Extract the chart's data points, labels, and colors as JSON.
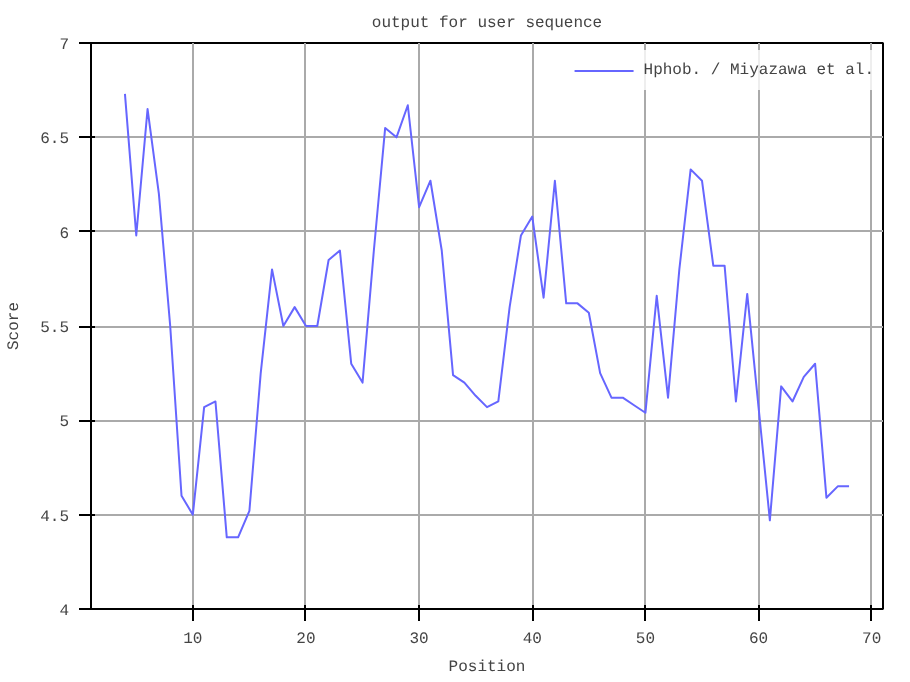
{
  "chart_data": {
    "type": "line",
    "title": "output for user sequence",
    "xlabel": "Position",
    "ylabel": "Score",
    "x": [
      4,
      5,
      6,
      7,
      8,
      9,
      10,
      11,
      12,
      13,
      14,
      15,
      16,
      17,
      18,
      19,
      20,
      21,
      22,
      23,
      24,
      25,
      26,
      27,
      28,
      29,
      30,
      31,
      32,
      33,
      34,
      35,
      36,
      37,
      38,
      39,
      40,
      41,
      42,
      43,
      44,
      45,
      46,
      47,
      48,
      49,
      50,
      51,
      52,
      53,
      54,
      55,
      56,
      57,
      58,
      59,
      60,
      61,
      62,
      63,
      64,
      65,
      66,
      67,
      68
    ],
    "series": [
      {
        "name": "Hphob. / Miyazawa et al.",
        "color": "#6666ff",
        "values": [
          6.73,
          5.98,
          6.65,
          6.2,
          5.5,
          4.6,
          4.5,
          5.07,
          5.1,
          4.38,
          4.38,
          4.52,
          5.25,
          5.8,
          5.5,
          5.6,
          5.5,
          5.5,
          5.85,
          5.9,
          5.3,
          5.2,
          5.9,
          6.55,
          6.5,
          6.67,
          6.13,
          6.27,
          5.9,
          5.24,
          5.2,
          5.13,
          5.07,
          5.1,
          5.6,
          5.98,
          6.08,
          5.65,
          6.27,
          5.62,
          5.62,
          5.57,
          5.25,
          5.12,
          5.12,
          5.08,
          5.04,
          5.66,
          5.12,
          5.8,
          6.33,
          6.27,
          5.82,
          5.82,
          5.1,
          5.67,
          5.07,
          4.47,
          5.18,
          5.1,
          5.23,
          5.3,
          4.59,
          4.65,
          4.65
        ]
      }
    ],
    "xlim": [
      1,
      71
    ],
    "xticks": [
      10,
      20,
      30,
      40,
      50,
      60,
      70
    ],
    "ylim": [
      4,
      7
    ],
    "yticks": [
      4,
      {
        "value": 4.5,
        "label": "4.5"
      },
      5,
      {
        "value": 5.5,
        "label": "5.5"
      },
      6,
      {
        "value": 6.5,
        "label": "6.5"
      },
      7
    ],
    "grid": true,
    "legend": "top right",
    "marker": "none",
    "line_style": "solid"
  }
}
